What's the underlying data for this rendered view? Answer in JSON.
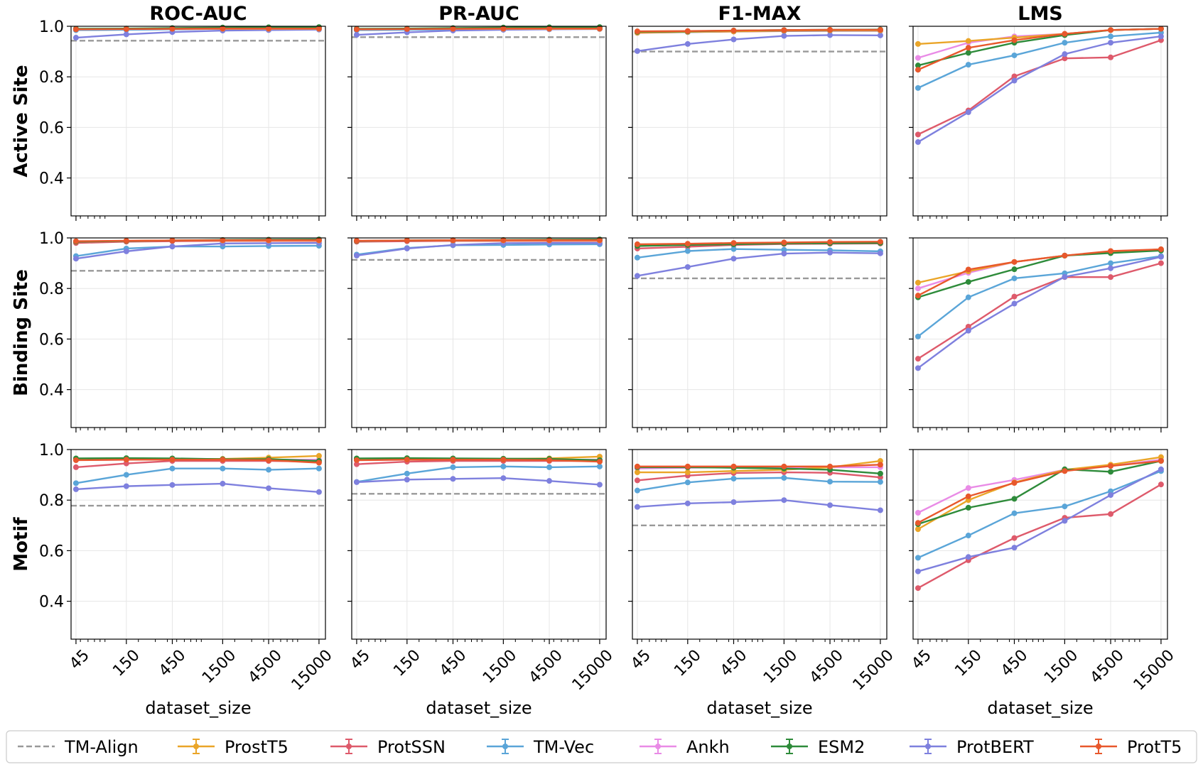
{
  "chart_data": {
    "type": "line",
    "x": [
      45,
      150,
      450,
      1500,
      4500,
      15000
    ],
    "x_tick_labels": [
      "45",
      "150",
      "450",
      "1500",
      "4500",
      "15000"
    ],
    "x_scale": "log",
    "xlabel": "dataset_size",
    "ylim": [
      0.25,
      1.0
    ],
    "y_ticks": [
      "0.4",
      "0.6",
      "0.8",
      "1.0"
    ],
    "y_tick_values": [
      0.4,
      0.6,
      0.8,
      1.0
    ],
    "columns": [
      "ROC-AUC",
      "PR-AUC",
      "F1-MAX",
      "LMS"
    ],
    "rows": [
      "Active Site",
      "Binding Site",
      "Motif"
    ],
    "legend": [
      {
        "name": "TM-Align",
        "color": "#999999",
        "style": "dashed"
      },
      {
        "name": "ProstT5",
        "color": "#EAA528",
        "style": "solid"
      },
      {
        "name": "ProtSSN",
        "color": "#DE5A6B",
        "style": "solid"
      },
      {
        "name": "TM-Vec",
        "color": "#5AA5D8",
        "style": "solid"
      },
      {
        "name": "Ankh",
        "color": "#E98BE6",
        "style": "solid"
      },
      {
        "name": "ESM2",
        "color": "#2E8B3A",
        "style": "solid"
      },
      {
        "name": "ProtBERT",
        "color": "#7E80DE",
        "style": "solid"
      },
      {
        "name": "ProtT5",
        "color": "#E8582C",
        "style": "solid"
      }
    ],
    "panels": [
      {
        "row": "Active Site",
        "col": "ROC-AUC",
        "baseline": 0.943,
        "series": {
          "ProstT5": [
            0.99,
            0.99,
            0.99,
            0.99,
            0.99,
            0.99
          ],
          "ProtSSN": [
            0.985,
            0.987,
            0.988,
            0.99,
            0.99,
            0.99
          ],
          "TM-Vec": [
            0.985,
            0.986,
            0.988,
            0.99,
            0.99,
            0.99
          ],
          "Ankh": [
            0.99,
            0.99,
            0.99,
            0.99,
            0.99,
            0.99
          ],
          "ESM2": [
            0.99,
            0.991,
            0.993,
            0.995,
            0.996,
            0.997
          ],
          "ProtBERT": [
            0.955,
            0.968,
            0.977,
            0.983,
            0.985,
            0.987
          ],
          "ProtT5": [
            0.988,
            0.989,
            0.99,
            0.991,
            0.991,
            0.991
          ]
        }
      },
      {
        "row": "Active Site",
        "col": "PR-AUC",
        "baseline": 0.957,
        "series": {
          "ProstT5": [
            0.99,
            0.99,
            0.99,
            0.99,
            0.99,
            0.99
          ],
          "ProtSSN": [
            0.985,
            0.987,
            0.988,
            0.99,
            0.99,
            0.99
          ],
          "TM-Vec": [
            0.985,
            0.986,
            0.988,
            0.99,
            0.99,
            0.99
          ],
          "Ankh": [
            0.99,
            0.99,
            0.99,
            0.99,
            0.99,
            0.99
          ],
          "ESM2": [
            0.99,
            0.991,
            0.993,
            0.995,
            0.996,
            0.997
          ],
          "ProtBERT": [
            0.966,
            0.976,
            0.983,
            0.986,
            0.988,
            0.989
          ],
          "ProtT5": [
            0.988,
            0.989,
            0.99,
            0.991,
            0.991,
            0.991
          ]
        }
      },
      {
        "row": "Active Site",
        "col": "F1-MAX",
        "baseline": 0.9,
        "series": {
          "ProstT5": [
            0.975,
            0.978,
            0.98,
            0.983,
            0.984,
            0.984
          ],
          "ProtSSN": [
            0.974,
            0.977,
            0.979,
            0.981,
            0.982,
            0.982
          ],
          "TM-Vec": [
            0.975,
            0.977,
            0.98,
            0.982,
            0.983,
            0.983
          ],
          "Ankh": [
            0.978,
            0.98,
            0.982,
            0.984,
            0.985,
            0.985
          ],
          "ESM2": [
            0.978,
            0.98,
            0.983,
            0.985,
            0.986,
            0.987
          ],
          "ProtBERT": [
            0.902,
            0.93,
            0.948,
            0.962,
            0.965,
            0.964
          ],
          "ProtT5": [
            0.98,
            0.981,
            0.983,
            0.985,
            0.986,
            0.986
          ]
        }
      },
      {
        "row": "Active Site",
        "col": "LMS",
        "baseline": null,
        "series": {
          "ProstT5": [
            0.93,
            0.942,
            0.955,
            0.97,
            0.985,
            0.99
          ],
          "ProtSSN": [
            0.572,
            0.667,
            0.802,
            0.873,
            0.877,
            0.945
          ],
          "TM-Vec": [
            0.756,
            0.848,
            0.885,
            0.935,
            0.96,
            0.975
          ],
          "Ankh": [
            0.875,
            0.935,
            0.96,
            0.97,
            0.985,
            0.99
          ],
          "ESM2": [
            0.845,
            0.895,
            0.935,
            0.965,
            0.985,
            0.99
          ],
          "ProtBERT": [
            0.542,
            0.66,
            0.785,
            0.89,
            0.935,
            0.96
          ],
          "ProtT5": [
            0.828,
            0.915,
            0.945,
            0.97,
            0.985,
            0.99
          ]
        }
      },
      {
        "row": "Binding Site",
        "col": "ROC-AUC",
        "baseline": 0.87,
        "series": {
          "ProstT5": [
            0.985,
            0.988,
            0.99,
            0.99,
            0.99,
            0.99
          ],
          "ProtSSN": [
            0.98,
            0.985,
            0.987,
            0.988,
            0.988,
            0.988
          ],
          "TM-Vec": [
            0.928,
            0.958,
            0.966,
            0.966,
            0.968,
            0.969
          ],
          "Ankh": [
            0.985,
            0.988,
            0.99,
            0.99,
            0.99,
            0.99
          ],
          "ESM2": [
            0.985,
            0.988,
            0.99,
            0.992,
            0.993,
            0.994
          ],
          "ProtBERT": [
            0.918,
            0.947,
            0.966,
            0.978,
            0.979,
            0.98
          ],
          "ProtT5": [
            0.987,
            0.989,
            0.99,
            0.991,
            0.991,
            0.991
          ]
        }
      },
      {
        "row": "Binding Site",
        "col": "PR-AUC",
        "baseline": 0.913,
        "series": {
          "ProstT5": [
            0.988,
            0.99,
            0.99,
            0.99,
            0.99,
            0.99
          ],
          "ProtSSN": [
            0.985,
            0.987,
            0.988,
            0.988,
            0.988,
            0.988
          ],
          "TM-Vec": [
            0.934,
            0.96,
            0.971,
            0.972,
            0.974,
            0.975
          ],
          "Ankh": [
            0.988,
            0.99,
            0.99,
            0.99,
            0.99,
            0.99
          ],
          "ESM2": [
            0.988,
            0.99,
            0.991,
            0.992,
            0.993,
            0.994
          ],
          "ProtBERT": [
            0.93,
            0.958,
            0.972,
            0.979,
            0.98,
            0.98
          ],
          "ProtT5": [
            0.989,
            0.99,
            0.991,
            0.991,
            0.991,
            0.991
          ]
        }
      },
      {
        "row": "Binding Site",
        "col": "F1-MAX",
        "baseline": 0.84,
        "series": {
          "ProstT5": [
            0.972,
            0.975,
            0.978,
            0.98,
            0.982,
            0.982
          ],
          "ProtSSN": [
            0.958,
            0.965,
            0.972,
            0.976,
            0.977,
            0.978
          ],
          "TM-Vec": [
            0.922,
            0.948,
            0.956,
            0.953,
            0.951,
            0.947
          ],
          "Ankh": [
            0.972,
            0.975,
            0.978,
            0.98,
            0.982,
            0.982
          ],
          "ESM2": [
            0.968,
            0.972,
            0.975,
            0.978,
            0.979,
            0.98
          ],
          "ProtBERT": [
            0.85,
            0.885,
            0.918,
            0.938,
            0.942,
            0.939
          ],
          "ProtT5": [
            0.975,
            0.977,
            0.98,
            0.982,
            0.984,
            0.985
          ]
        }
      },
      {
        "row": "Binding Site",
        "col": "LMS",
        "baseline": null,
        "series": {
          "ProstT5": [
            0.823,
            0.868,
            0.905,
            0.93,
            0.945,
            0.955
          ],
          "ProtSSN": [
            0.522,
            0.649,
            0.768,
            0.845,
            0.845,
            0.9
          ],
          "TM-Vec": [
            0.61,
            0.765,
            0.84,
            0.86,
            0.9,
            0.928
          ],
          "Ankh": [
            0.8,
            0.862,
            0.905,
            0.93,
            0.945,
            0.955
          ],
          "ESM2": [
            0.765,
            0.826,
            0.876,
            0.93,
            0.94,
            0.95
          ],
          "ProtBERT": [
            0.485,
            0.633,
            0.74,
            0.846,
            0.88,
            0.925
          ],
          "ProtT5": [
            0.772,
            0.875,
            0.905,
            0.93,
            0.948,
            0.955
          ]
        }
      },
      {
        "row": "Motif",
        "col": "ROC-AUC",
        "baseline": 0.778,
        "series": {
          "ProstT5": [
            0.962,
            0.963,
            0.963,
            0.963,
            0.968,
            0.975
          ],
          "ProtSSN": [
            0.93,
            0.945,
            0.955,
            0.955,
            0.955,
            0.952
          ],
          "TM-Vec": [
            0.867,
            0.9,
            0.925,
            0.925,
            0.92,
            0.925
          ],
          "Ankh": [
            0.958,
            0.96,
            0.96,
            0.96,
            0.96,
            0.96
          ],
          "ESM2": [
            0.965,
            0.966,
            0.965,
            0.962,
            0.962,
            0.955
          ],
          "ProtBERT": [
            0.843,
            0.855,
            0.86,
            0.865,
            0.847,
            0.832
          ],
          "ProtT5": [
            0.958,
            0.96,
            0.96,
            0.96,
            0.958,
            0.948
          ]
        }
      },
      {
        "row": "Motif",
        "col": "PR-AUC",
        "baseline": 0.825,
        "series": {
          "ProstT5": [
            0.962,
            0.963,
            0.963,
            0.963,
            0.965,
            0.972
          ],
          "ProtSSN": [
            0.942,
            0.952,
            0.955,
            0.955,
            0.955,
            0.955
          ],
          "TM-Vec": [
            0.872,
            0.905,
            0.93,
            0.933,
            0.93,
            0.933
          ],
          "Ankh": [
            0.958,
            0.96,
            0.96,
            0.96,
            0.96,
            0.96
          ],
          "ESM2": [
            0.965,
            0.966,
            0.965,
            0.964,
            0.963,
            0.958
          ],
          "ProtBERT": [
            0.871,
            0.881,
            0.884,
            0.887,
            0.876,
            0.861
          ],
          "ProtT5": [
            0.958,
            0.96,
            0.96,
            0.96,
            0.958,
            0.952
          ]
        }
      },
      {
        "row": "Motif",
        "col": "F1-MAX",
        "baseline": 0.7,
        "series": {
          "ProstT5": [
            0.91,
            0.91,
            0.915,
            0.92,
            0.93,
            0.955
          ],
          "ProtSSN": [
            0.878,
            0.897,
            0.907,
            0.91,
            0.908,
            0.89
          ],
          "TM-Vec": [
            0.838,
            0.87,
            0.885,
            0.888,
            0.873,
            0.872
          ],
          "Ankh": [
            0.925,
            0.928,
            0.93,
            0.93,
            0.93,
            0.93
          ],
          "ESM2": [
            0.93,
            0.93,
            0.928,
            0.925,
            0.92,
            0.905
          ],
          "ProtBERT": [
            0.773,
            0.787,
            0.792,
            0.8,
            0.78,
            0.76
          ],
          "ProtT5": [
            0.933,
            0.933,
            0.933,
            0.933,
            0.933,
            0.94
          ]
        }
      },
      {
        "row": "Motif",
        "col": "LMS",
        "baseline": null,
        "series": {
          "ProstT5": [
            0.685,
            0.8,
            0.87,
            0.92,
            0.94,
            0.97
          ],
          "ProtSSN": [
            0.452,
            0.562,
            0.65,
            0.73,
            0.745,
            0.862
          ],
          "TM-Vec": [
            0.572,
            0.66,
            0.748,
            0.775,
            0.835,
            0.915
          ],
          "Ankh": [
            0.75,
            0.848,
            0.88,
            0.92,
            0.935,
            0.96
          ],
          "ESM2": [
            0.705,
            0.77,
            0.805,
            0.922,
            0.912,
            0.955
          ],
          "ProtBERT": [
            0.518,
            0.575,
            0.612,
            0.718,
            0.82,
            0.922
          ],
          "ProtT5": [
            0.71,
            0.815,
            0.868,
            0.915,
            0.935,
            0.955
          ]
        }
      }
    ]
  }
}
